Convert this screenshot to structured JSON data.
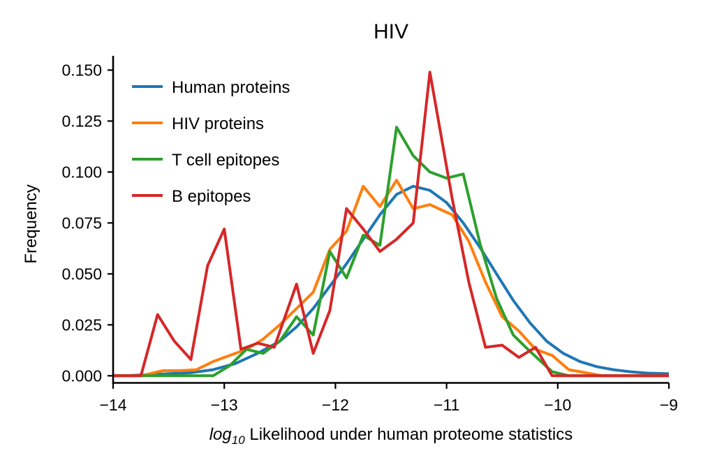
{
  "chart_data": {
    "type": "line",
    "title": "HIV",
    "xlabel_math": "log",
    "xlabel_sub": "10",
    "xlabel_rest": " Likelihood under human proteome statistics",
    "ylabel": "Frequency",
    "xlim": [
      -14,
      -9
    ],
    "ylim": [
      -0.004,
      0.157
    ],
    "xticks": [
      -14,
      -13,
      -12,
      -11,
      -10,
      -9
    ],
    "xtick_labels": [
      "−14",
      "−13",
      "−12",
      "−11",
      "−10",
      "−9"
    ],
    "yticks": [
      0.0,
      0.025,
      0.05,
      0.075,
      0.1,
      0.125,
      0.15
    ],
    "ytick_labels": [
      "0.000",
      "0.025",
      "0.050",
      "0.075",
      "0.100",
      "0.125",
      "0.150"
    ],
    "grid": false,
    "legend_position": "top-left",
    "series": [
      {
        "name": "Human proteins",
        "color": "#1f77b4",
        "points": [
          [
            -14.0,
            0.0
          ],
          [
            -13.9,
            0.0
          ],
          [
            -13.7,
            0.0005
          ],
          [
            -13.5,
            0.001
          ],
          [
            -13.3,
            0.0015
          ],
          [
            -13.1,
            0.003
          ],
          [
            -12.9,
            0.006
          ],
          [
            -12.7,
            0.011
          ],
          [
            -12.5,
            0.017
          ],
          [
            -12.35,
            0.024
          ],
          [
            -12.2,
            0.033
          ],
          [
            -12.05,
            0.044
          ],
          [
            -11.9,
            0.055
          ],
          [
            -11.75,
            0.067
          ],
          [
            -11.6,
            0.079
          ],
          [
            -11.45,
            0.089
          ],
          [
            -11.3,
            0.093
          ],
          [
            -11.15,
            0.091
          ],
          [
            -11.0,
            0.085
          ],
          [
            -10.85,
            0.075
          ],
          [
            -10.7,
            0.063
          ],
          [
            -10.55,
            0.05
          ],
          [
            -10.4,
            0.037
          ],
          [
            -10.25,
            0.026
          ],
          [
            -10.1,
            0.017
          ],
          [
            -9.95,
            0.011
          ],
          [
            -9.8,
            0.007
          ],
          [
            -9.65,
            0.0045
          ],
          [
            -9.5,
            0.003
          ],
          [
            -9.35,
            0.002
          ],
          [
            -9.2,
            0.0013
          ],
          [
            -9.0,
            0.001
          ]
        ]
      },
      {
        "name": "HIV proteins",
        "color": "#ff7f0e",
        "points": [
          [
            -14.0,
            0.0
          ],
          [
            -13.75,
            0.0
          ],
          [
            -13.55,
            0.0025
          ],
          [
            -13.4,
            0.0025
          ],
          [
            -13.25,
            0.003
          ],
          [
            -13.1,
            0.007
          ],
          [
            -12.95,
            0.01
          ],
          [
            -12.8,
            0.013
          ],
          [
            -12.65,
            0.018
          ],
          [
            -12.5,
            0.025
          ],
          [
            -12.35,
            0.033
          ],
          [
            -12.2,
            0.041
          ],
          [
            -12.05,
            0.062
          ],
          [
            -11.9,
            0.071
          ],
          [
            -11.75,
            0.093
          ],
          [
            -11.6,
            0.083
          ],
          [
            -11.45,
            0.096
          ],
          [
            -11.3,
            0.082
          ],
          [
            -11.15,
            0.084
          ],
          [
            -10.95,
            0.079
          ],
          [
            -10.8,
            0.066
          ],
          [
            -10.65,
            0.046
          ],
          [
            -10.5,
            0.029
          ],
          [
            -10.35,
            0.022
          ],
          [
            -10.2,
            0.013
          ],
          [
            -10.05,
            0.01
          ],
          [
            -9.9,
            0.003
          ],
          [
            -9.75,
            0.0015
          ],
          [
            -9.6,
            0.0
          ],
          [
            -9.0,
            0.0
          ]
        ]
      },
      {
        "name": "T cell epitopes",
        "color": "#2ca02c",
        "points": [
          [
            -14.0,
            0.0
          ],
          [
            -13.75,
            0.0
          ],
          [
            -13.5,
            0.0
          ],
          [
            -13.35,
            0.0
          ],
          [
            -13.1,
            0.0
          ],
          [
            -12.95,
            0.005
          ],
          [
            -12.8,
            0.013
          ],
          [
            -12.65,
            0.011
          ],
          [
            -12.5,
            0.017
          ],
          [
            -12.35,
            0.029
          ],
          [
            -12.2,
            0.02
          ],
          [
            -12.05,
            0.061
          ],
          [
            -11.9,
            0.048
          ],
          [
            -11.75,
            0.069
          ],
          [
            -11.6,
            0.064
          ],
          [
            -11.45,
            0.122
          ],
          [
            -11.3,
            0.108
          ],
          [
            -11.15,
            0.1
          ],
          [
            -11.0,
            0.097
          ],
          [
            -10.85,
            0.099
          ],
          [
            -10.7,
            0.065
          ],
          [
            -10.55,
            0.038
          ],
          [
            -10.4,
            0.02
          ],
          [
            -10.25,
            0.012
          ],
          [
            -10.05,
            0.002
          ],
          [
            -9.9,
            0.0
          ],
          [
            -9.0,
            0.0
          ]
        ]
      },
      {
        "name": "B epitopes",
        "color": "#d62728",
        "points": [
          [
            -14.0,
            0.0
          ],
          [
            -13.75,
            0.0
          ],
          [
            -13.6,
            0.03
          ],
          [
            -13.45,
            0.017
          ],
          [
            -13.3,
            0.008
          ],
          [
            -13.15,
            0.054
          ],
          [
            -13.0,
            0.072
          ],
          [
            -12.85,
            0.013
          ],
          [
            -12.7,
            0.016
          ],
          [
            -12.55,
            0.014
          ],
          [
            -12.35,
            0.045
          ],
          [
            -12.2,
            0.011
          ],
          [
            -12.05,
            0.032
          ],
          [
            -11.9,
            0.082
          ],
          [
            -11.75,
            0.072
          ],
          [
            -11.6,
            0.061
          ],
          [
            -11.45,
            0.067
          ],
          [
            -11.3,
            0.075
          ],
          [
            -11.15,
            0.149
          ],
          [
            -10.95,
            0.087
          ],
          [
            -10.8,
            0.046
          ],
          [
            -10.65,
            0.014
          ],
          [
            -10.5,
            0.015
          ],
          [
            -10.35,
            0.009
          ],
          [
            -10.2,
            0.014
          ],
          [
            -10.05,
            0.0
          ],
          [
            -9.9,
            0.0
          ],
          [
            -9.0,
            0.0
          ]
        ]
      }
    ]
  }
}
